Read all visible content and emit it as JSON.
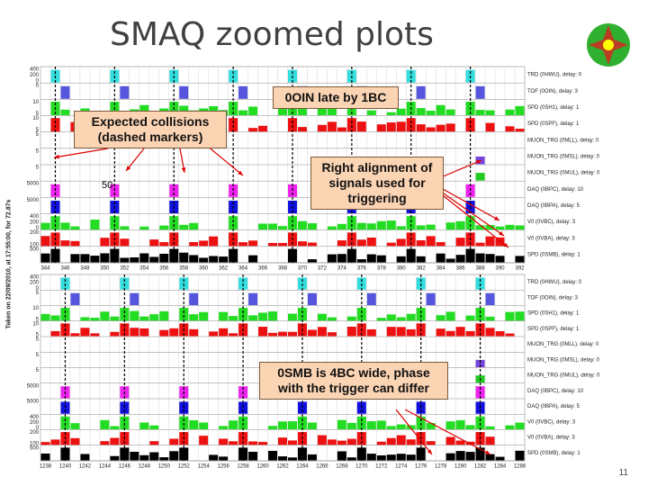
{
  "title": "SMAQ zoomed plots",
  "side_label": "Taken on 22/09/2010, at 17:55:00, for 72.87s",
  "page_number": "11",
  "channels": [
    "TRD (0HWU), delay: 0",
    "TOF (0OIN), delay: 3",
    "SPD (0SH1), delay: 1",
    "SPD (0SPF), delay: 1",
    "MUON_TRG (0MLL), delay: 0",
    "MUON_TRG (0MSL), delay: 0",
    "MUON_TRG (0MUL), delay: 0",
    "DAQ (0BPC), delay: 10",
    "DAQ (0BPA), delay: 5",
    "V0 (0VBC), delay: 3",
    "V0 (0VBA), delay: 3",
    "SPD (0SMB), delay: 1"
  ],
  "row_axis_labels": [
    [
      "400",
      "200",
      "0"
    ],
    [
      "5"
    ],
    [
      "10",
      "5"
    ],
    [
      "10",
      "5"
    ],
    [
      "5"
    ],
    [
      "5"
    ],
    [
      "5"
    ],
    [
      "5000"
    ],
    [
      "5000"
    ],
    [
      "400",
      "200",
      "0"
    ],
    [
      "200",
      "100"
    ],
    [
      "500"
    ]
  ],
  "panels": [
    {
      "x_labels": [
        "344",
        "346",
        "348",
        "350",
        "352",
        "354",
        "356",
        "358",
        "360",
        "362",
        "364",
        "366",
        "368",
        "370",
        "372",
        "374",
        "376",
        "378",
        "380",
        "382",
        "384",
        "386",
        "388",
        "390",
        "392"
      ]
    },
    {
      "x_labels": [
        "1238",
        "1240",
        "1242",
        "1244",
        "1246",
        "1248",
        "1250",
        "1252",
        "1254",
        "1256",
        "1258",
        "1260",
        "1262",
        "1264",
        "1266",
        "1268",
        "1270",
        "1272",
        "1274",
        "1276",
        "1278",
        "1280",
        "1282",
        "1284",
        "1286"
      ]
    }
  ],
  "annotations": {
    "late": "0OIN late by 1BC",
    "expected": "Expected collisions (dashed markers)",
    "alignment": "Right alignment of signals used for triggering",
    "width": "0SMB is 4BC wide, phase with the trigger can differ",
    "stray": "50"
  }
}
